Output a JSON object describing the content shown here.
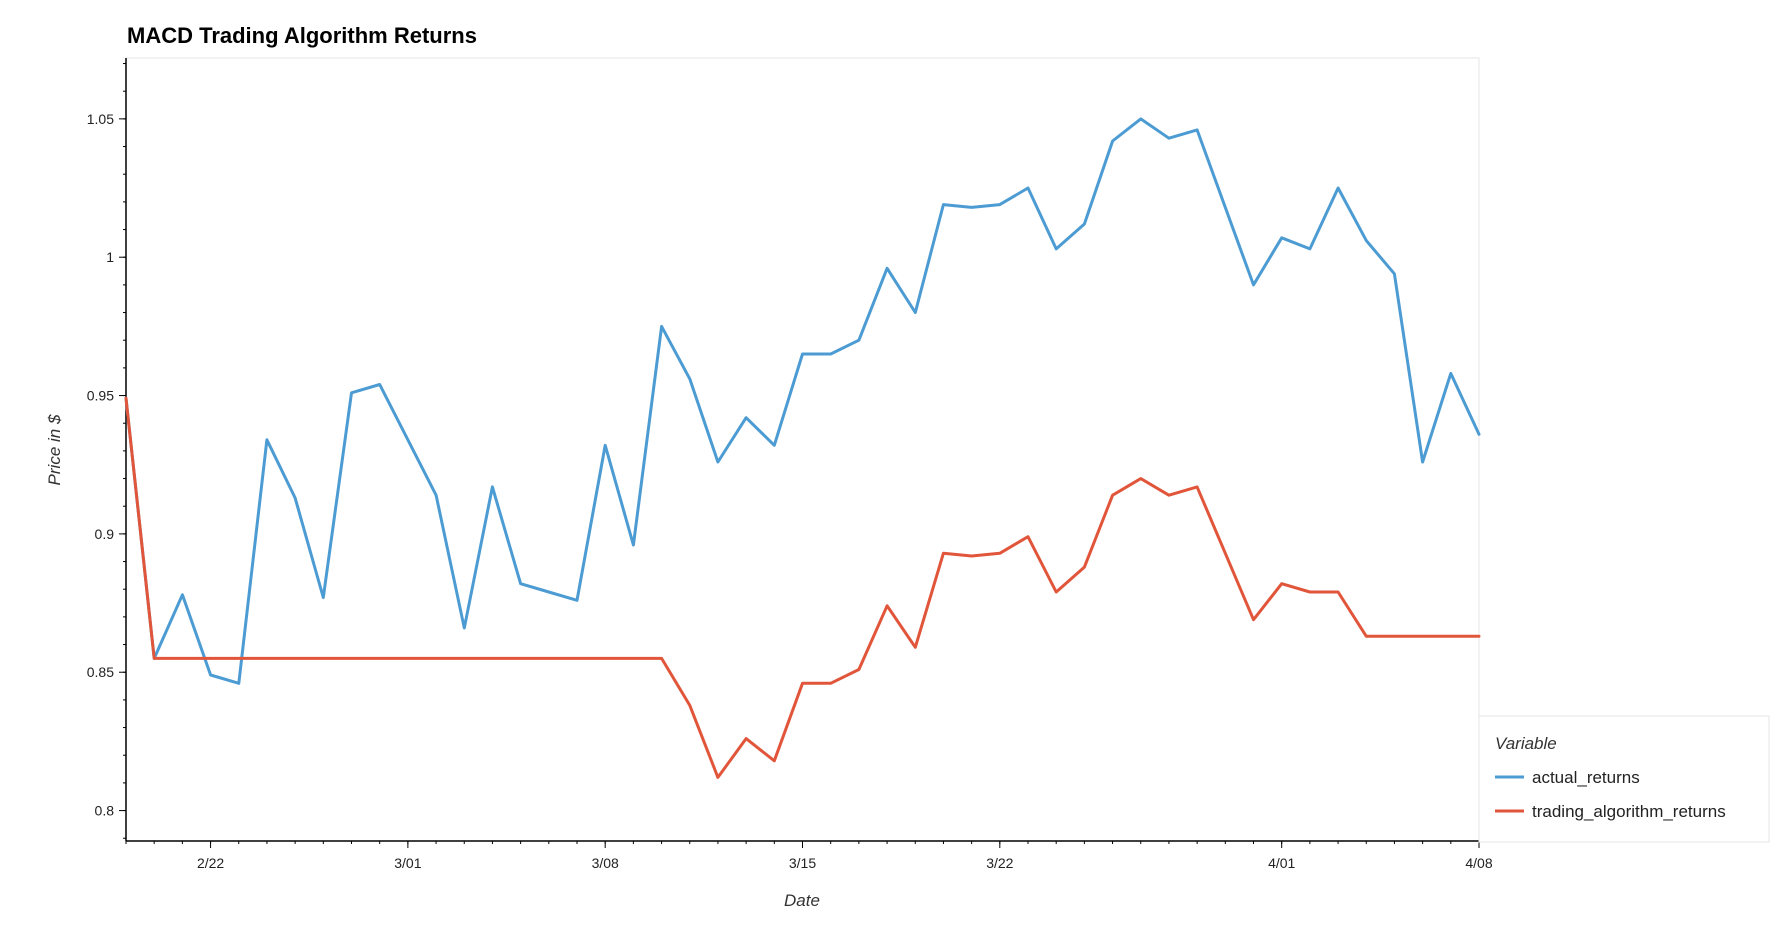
{
  "chart_data": {
    "type": "line",
    "title": "MACD Trading Algorithm Returns",
    "xlabel": "Date",
    "ylabel": "Price in $",
    "ylim": [
      0.789,
      1.072
    ],
    "y_ticks": [
      0.8,
      0.85,
      0.9,
      0.95,
      1.0,
      1.05
    ],
    "y_tick_labels": [
      "0.8",
      "0.85",
      "0.9",
      "0.95",
      "1",
      "1.05"
    ],
    "x_ticks": [
      "2/22",
      "3/01",
      "3/08",
      "3/15",
      "3/22",
      "4/01",
      "4/08"
    ],
    "x_tick_dates": [
      "2021-02-22",
      "2021-03-01",
      "2021-03-08",
      "2021-03-15",
      "2021-03-22",
      "2021-04-01",
      "2021-04-08"
    ],
    "xlim": [
      "2021-02-19",
      "2021-04-08"
    ],
    "grid": false,
    "legend_title": "Variable",
    "legend_position": "bottom-right",
    "colors": {
      "actual_returns": "#4c9cd3",
      "trading_algorithm_returns": "#e1553a"
    },
    "x": [
      "2021-02-19",
      "2021-02-22",
      "2021-02-23",
      "2021-02-24",
      "2021-02-25",
      "2021-02-26",
      "2021-03-01",
      "2021-03-02",
      "2021-03-03",
      "2021-03-04",
      "2021-03-05",
      "2021-03-08",
      "2021-03-09",
      "2021-03-10",
      "2021-03-11",
      "2021-03-12",
      "2021-03-15",
      "2021-03-16",
      "2021-03-17",
      "2021-03-18",
      "2021-03-19",
      "2021-03-22",
      "2021-03-23",
      "2021-03-24",
      "2021-03-25",
      "2021-03-26",
      "2021-03-29",
      "2021-03-30",
      "2021-03-31",
      "2021-04-01",
      "2021-04-05",
      "2021-04-06",
      "2021-04-07",
      "2021-04-08"
    ],
    "series": [
      {
        "name": "actual_returns",
        "color": "#4c9cd3",
        "points": [
          [
            "2021-02-19",
            0.949
          ],
          [
            "2021-02-20",
            0.855
          ],
          [
            "2021-02-21",
            0.878
          ],
          [
            "2021-02-22",
            0.849
          ],
          [
            "2021-02-23",
            0.846
          ],
          [
            "2021-02-24",
            0.934
          ],
          [
            "2021-02-25",
            0.913
          ],
          [
            "2021-02-26",
            0.877
          ],
          [
            "2021-02-27",
            0.951
          ],
          [
            "2021-02-28",
            0.954
          ],
          [
            "2021-03-02",
            0.914
          ],
          [
            "2021-03-03",
            0.866
          ],
          [
            "2021-03-04",
            0.917
          ],
          [
            "2021-03-05",
            0.882
          ],
          [
            "2021-03-06",
            0.879
          ],
          [
            "2021-03-07",
            0.876
          ],
          [
            "2021-03-08",
            0.932
          ],
          [
            "2021-03-09",
            0.896
          ],
          [
            "2021-03-10",
            0.975
          ],
          [
            "2021-03-11",
            0.956
          ],
          [
            "2021-03-12",
            0.926
          ],
          [
            "2021-03-13",
            0.942
          ],
          [
            "2021-03-14",
            0.932
          ],
          [
            "2021-03-15",
            0.965
          ],
          [
            "2021-03-16",
            0.965
          ],
          [
            "2021-03-17",
            0.97
          ],
          [
            "2021-03-18",
            0.996
          ],
          [
            "2021-03-19",
            0.98
          ],
          [
            "2021-03-20",
            1.019
          ],
          [
            "2021-03-21",
            1.018
          ],
          [
            "2021-03-22",
            1.019
          ],
          [
            "2021-03-23",
            1.025
          ],
          [
            "2021-03-24",
            1.003
          ],
          [
            "2021-03-25",
            1.012
          ],
          [
            "2021-03-26",
            1.042
          ],
          [
            "2021-03-27",
            1.05
          ],
          [
            "2021-03-28",
            1.043
          ],
          [
            "2021-03-29",
            1.046
          ],
          [
            "2021-03-31",
            0.99
          ],
          [
            "2021-04-01",
            1.007
          ],
          [
            "2021-04-02",
            1.003
          ],
          [
            "2021-04-03",
            1.025
          ],
          [
            "2021-04-04",
            1.006
          ],
          [
            "2021-04-05",
            0.994
          ],
          [
            "2021-04-06",
            0.926
          ],
          [
            "2021-04-07",
            0.958
          ],
          [
            "2021-04-08",
            0.936
          ]
        ]
      },
      {
        "name": "trading_algorithm_returns",
        "color": "#e1553a",
        "points": [
          [
            "2021-02-19",
            0.949
          ],
          [
            "2021-02-20",
            0.855
          ],
          [
            "2021-03-10",
            0.855
          ],
          [
            "2021-03-11",
            0.838
          ],
          [
            "2021-03-12",
            0.812
          ],
          [
            "2021-03-13",
            0.826
          ],
          [
            "2021-03-14",
            0.818
          ],
          [
            "2021-03-15",
            0.846
          ],
          [
            "2021-03-16",
            0.846
          ],
          [
            "2021-03-17",
            0.851
          ],
          [
            "2021-03-18",
            0.874
          ],
          [
            "2021-03-19",
            0.859
          ],
          [
            "2021-03-20",
            0.893
          ],
          [
            "2021-03-21",
            0.892
          ],
          [
            "2021-03-22",
            0.893
          ],
          [
            "2021-03-23",
            0.899
          ],
          [
            "2021-03-24",
            0.879
          ],
          [
            "2021-03-25",
            0.888
          ],
          [
            "2021-03-26",
            0.914
          ],
          [
            "2021-03-27",
            0.92
          ],
          [
            "2021-03-28",
            0.914
          ],
          [
            "2021-03-29",
            0.917
          ],
          [
            "2021-03-31",
            0.869
          ],
          [
            "2021-04-01",
            0.882
          ],
          [
            "2021-04-02",
            0.879
          ],
          [
            "2021-04-03",
            0.879
          ],
          [
            "2021-04-04",
            0.863
          ],
          [
            "2021-04-08",
            0.863
          ]
        ]
      }
    ]
  }
}
